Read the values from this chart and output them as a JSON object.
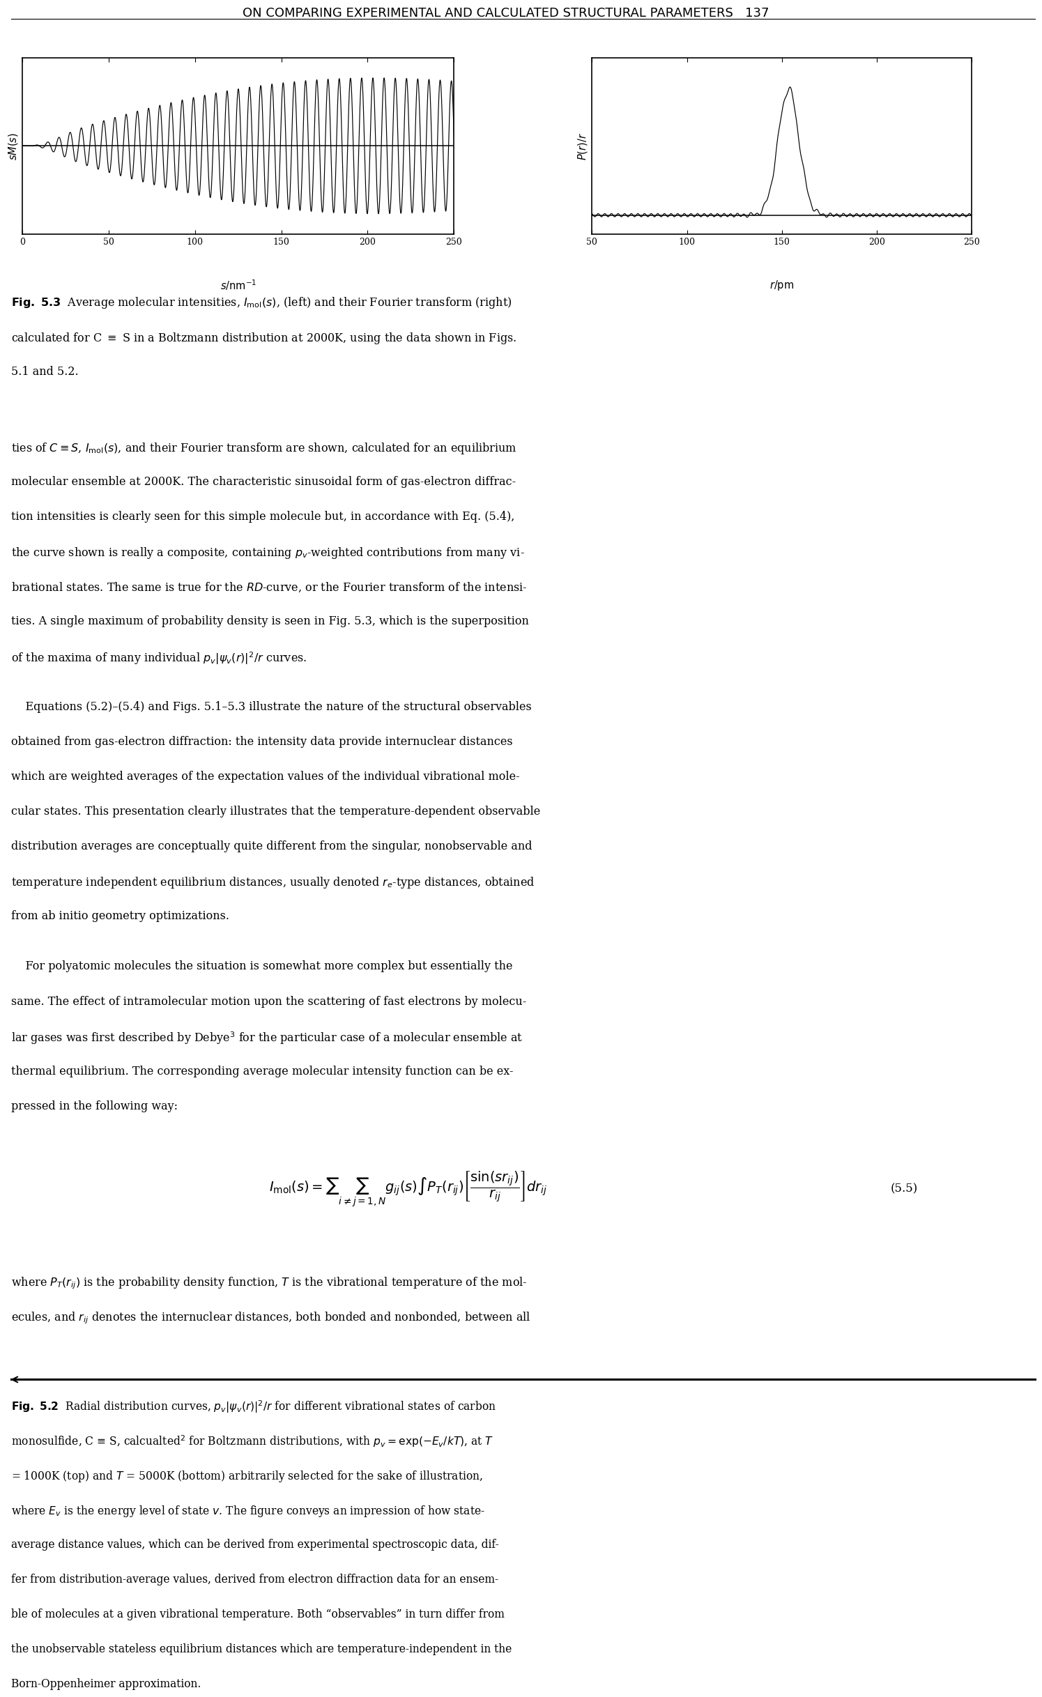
{
  "page_title": "ON COMPARING EXPERIMENTAL AND CALCULATED STRUCTURAL PARAMETERS   137",
  "background_color": "#ffffff",
  "text_color": "#000000",
  "left_xticks": [
    0,
    50,
    100,
    150,
    200,
    250
  ],
  "right_xticks": [
    50,
    100,
    150,
    200,
    250
  ],
  "left_xlabel": "$s/\\mathrm{nm}^{-1}$",
  "right_xlabel": "$r/\\mathrm{pm}$",
  "left_ylabel": "$sM(s)$",
  "right_ylabel": "$P(r)/r$",
  "body1_lines": [
    "ties of $C \\equiv S$, $I_{\\mathrm{mol}}(s)$, and their Fourier transform are shown, calculated for an equilibrium",
    "molecular ensemble at 2000K. The characteristic sinusoidal form of gas-electron diffrac-",
    "tion intensities is clearly seen for this simple molecule but, in accordance with Eq. (5.4),",
    "the curve shown is really a composite, containing $p_v$-weighted contributions from many vi-",
    "brational states. The same is true for the $RD$-curve, or the Fourier transform of the intensi-",
    "ties. A single maximum of probability density is seen in Fig. 5.3, which is the superposition",
    "of the maxima of many individual $p_v|\\psi_v(r)|^2/r$ curves."
  ],
  "body2_lines": [
    "    Equations (5.2)–(5.4) and Figs. 5.1–5.3 illustrate the nature of the structural observables",
    "obtained from gas-electron diffraction: the intensity data provide internuclear distances",
    "which are weighted averages of the expectation values of the individual vibrational mole-",
    "cular states. This presentation clearly illustrates that the temperature-dependent observable",
    "distribution averages are conceptually quite different from the singular, nonobservable and",
    "temperature independent equilibrium distances, usually denoted $r_e$-type distances, obtained",
    "from ab initio geometry optimizations."
  ],
  "body3_lines": [
    "    For polyatomic molecules the situation is somewhat more complex but essentially the",
    "same. The effect of intramolecular motion upon the scattering of fast electrons by molecu-",
    "lar gases was first described by Debye$^3$ for the particular case of a molecular ensemble at",
    "thermal equilibrium. The corresponding average molecular intensity function can be ex-",
    "pressed in the following way:"
  ],
  "body4_lines": [
    "where $P_T(r_{ij})$ is the probability density function, $T$ is the vibrational temperature of the mol-",
    "ecules, and $r_{ij}$ denotes the internuclear distances, both bonded and nonbonded, between all"
  ],
  "fig52_lines": [
    "monosulfide, C ≡ S, calcualted$^2$ for Boltzmann distributions, with $p_v = \\exp(-E_v/kT)$, at $T$",
    "= 1000K (top) and $T$ = 5000K (bottom) arbitrarily selected for the sake of illustration,",
    "where $E_v$ is the energy level of state $v$. The figure conveys an impression of how state-",
    "average distance values, which can be derived from experimental spectroscopic data, dif-",
    "fer from distribution-average values, derived from electron diffraction data for an ensem-",
    "ble of molecules at a given vibrational temperature. Both “observables” in turn differ from",
    "the unobservable stateless equilibrium distances which are temperature-independent in the",
    "Born-Oppenheimer approximation."
  ]
}
